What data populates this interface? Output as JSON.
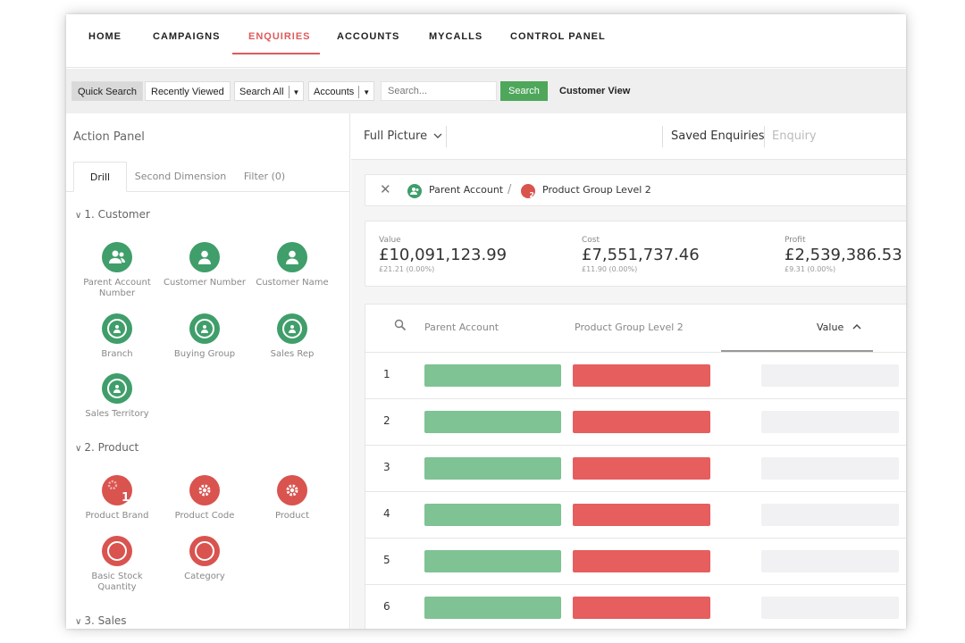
{
  "nav": {
    "items": [
      "HOME",
      "CAMPAIGNS",
      "ENQUIRIES",
      "ACCOUNTS",
      "MYCALLS",
      "CONTROL PANEL"
    ],
    "active": "ENQUIRIES"
  },
  "searchbar": {
    "quick_search": "Quick Search",
    "recently_viewed": "Recently Viewed",
    "search_all": "Search All",
    "accounts": "Accounts",
    "placeholder": "Search...",
    "search_button": "Search",
    "customer_view": "Customer View"
  },
  "action_panel": {
    "title": "Action Panel",
    "tabs": [
      "Drill",
      "Second Dimension",
      "Filter (0)"
    ],
    "sections": [
      {
        "title": "1. Customer",
        "items": [
          "Parent Account Number",
          "Customer Number",
          "Customer Name",
          "Branch",
          "Buying Group",
          "Sales Rep",
          "Sales Territory"
        ]
      },
      {
        "title": "2. Product",
        "items": [
          "Product Brand",
          "Product Code",
          "Product",
          "Basic Stock Quantity",
          "Category"
        ]
      },
      {
        "title": "3. Sales"
      }
    ],
    "product_brand_badge": "1"
  },
  "main": {
    "view_selector": "Full Picture",
    "saved_enquiries": "Saved Enquiries",
    "enquiry": "Enquiry",
    "breadcrumb": [
      "Parent Account",
      "Product Group Level 2"
    ],
    "breadcrumb_badge": "2",
    "metrics": [
      {
        "label": "Value",
        "value": "£10,091,123.99",
        "sub": "£21.21 (0.00%)"
      },
      {
        "label": "Cost",
        "value": "£7,551,737.46",
        "sub": "£11.90 (0.00%)"
      },
      {
        "label": "Profit",
        "value": "£2,539,386.53",
        "sub": "£9.31 (0.00%)"
      }
    ],
    "table": {
      "columns": [
        "Parent Account",
        "Product Group Level 2",
        "Value"
      ],
      "rows": [
        "1",
        "2",
        "3",
        "4",
        "5",
        "6"
      ]
    }
  },
  "colors": {
    "accent_red": "#e05a5a",
    "green": "#3f9e6a",
    "red_icon": "#d9534f",
    "search_green": "#4ea75b"
  }
}
